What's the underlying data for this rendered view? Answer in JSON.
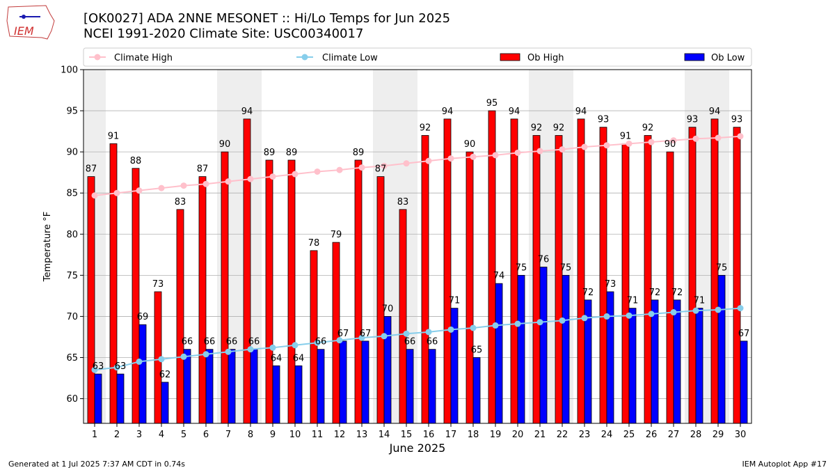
{
  "header": {
    "logo_text": "IEM",
    "title_line1": "[OK0027] ADA 2NNE MESONET :: Hi/Lo Temps for Jun 2025",
    "title_line2": "NCEI 1991-2020 Climate Site: USC00340017"
  },
  "footer": {
    "generated": "Generated at 1 Jul 2025 7:37 AM CDT in 0.74s",
    "app": "IEM Autoplot App #17"
  },
  "colors": {
    "ob_high": "#ff0000",
    "ob_low": "#0000ff",
    "climate_high": "#ffc0cb",
    "climate_low": "#87ceeb",
    "weekend_band": "#eeeeee"
  },
  "chart_data": {
    "type": "bar",
    "xlabel": "June 2025",
    "ylabel": "Temperature °F",
    "ylim": [
      57,
      100
    ],
    "yticks": [
      60,
      65,
      70,
      75,
      80,
      85,
      90,
      95,
      100
    ],
    "grid": "horizontal",
    "legend_placement": "top",
    "categories": [
      "1",
      "2",
      "3",
      "4",
      "5",
      "6",
      "7",
      "8",
      "9",
      "10",
      "11",
      "12",
      "13",
      "14",
      "15",
      "16",
      "17",
      "18",
      "19",
      "20",
      "21",
      "22",
      "23",
      "24",
      "25",
      "26",
      "27",
      "28",
      "29",
      "30"
    ],
    "shaded_days": [
      1,
      7,
      8,
      14,
      15,
      21,
      22,
      28,
      29
    ],
    "series": [
      {
        "name": "Ob High",
        "kind": "bar",
        "values": [
          87,
          91,
          88,
          73,
          83,
          87,
          90,
          94,
          89,
          89,
          78,
          79,
          89,
          87,
          83,
          92,
          94,
          90,
          95,
          94,
          92,
          92,
          94,
          93,
          91,
          92,
          90,
          93,
          94,
          93
        ]
      },
      {
        "name": "Ob Low",
        "kind": "bar",
        "values": [
          63,
          63,
          69,
          62,
          66,
          66,
          66,
          66,
          64,
          64,
          66,
          67,
          67,
          70,
          66,
          66,
          71,
          65,
          74,
          75,
          76,
          75,
          72,
          73,
          71,
          72,
          72,
          71,
          75,
          67
        ]
      },
      {
        "name": "Climate High",
        "kind": "line",
        "values": [
          84.7,
          85.0,
          85.3,
          85.6,
          85.9,
          86.1,
          86.4,
          86.7,
          87.0,
          87.3,
          87.6,
          87.8,
          88.1,
          88.3,
          88.6,
          88.9,
          89.2,
          89.4,
          89.6,
          89.9,
          90.1,
          90.3,
          90.6,
          90.8,
          91.0,
          91.2,
          91.4,
          91.6,
          91.7,
          91.9
        ]
      },
      {
        "name": "Climate Low",
        "kind": "line",
        "values": [
          63.5,
          63.8,
          64.5,
          64.8,
          65.1,
          65.4,
          65.7,
          66.0,
          66.2,
          66.5,
          66.8,
          67.1,
          67.4,
          67.6,
          67.9,
          68.1,
          68.4,
          68.6,
          68.9,
          69.1,
          69.3,
          69.5,
          69.8,
          70.0,
          70.1,
          70.3,
          70.5,
          70.7,
          70.8,
          71.0
        ]
      }
    ]
  }
}
